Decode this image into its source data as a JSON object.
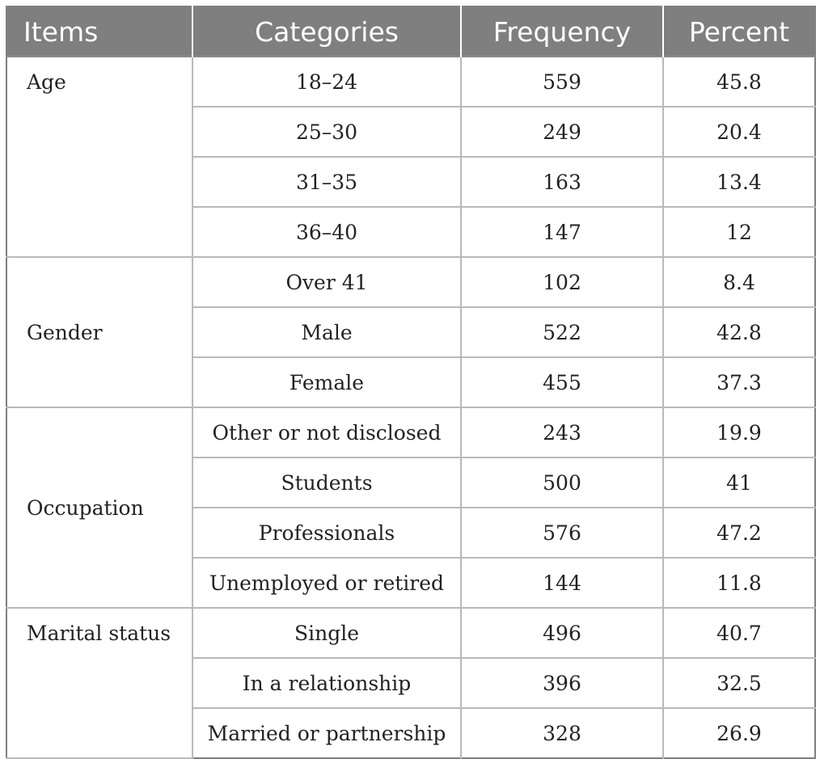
{
  "table": {
    "headers": [
      "Items",
      "Categories",
      "Frequency",
      "Percent"
    ],
    "groups": [
      {
        "item": "Age",
        "rows": [
          {
            "category": "18–24",
            "frequency": "559",
            "percent": "45.8"
          },
          {
            "category": "25–30",
            "frequency": "249",
            "percent": "20.4"
          },
          {
            "category": "31–35",
            "frequency": "163",
            "percent": "13.4"
          },
          {
            "category": "36–40",
            "frequency": "147",
            "percent": "12"
          }
        ]
      },
      {
        "item": "Gender",
        "rows": [
          {
            "category": "Over 41",
            "frequency": "102",
            "percent": "8.4"
          },
          {
            "category": "Male",
            "frequency": "522",
            "percent": "42.8"
          },
          {
            "category": "Female",
            "frequency": "455",
            "percent": "37.3"
          }
        ]
      },
      {
        "item": "Occupation",
        "rows": [
          {
            "category": "Other or not disclosed",
            "frequency": "243",
            "percent": "19.9"
          },
          {
            "category": "Students",
            "frequency": "500",
            "percent": "41"
          },
          {
            "category": "Professionals",
            "frequency": "576",
            "percent": "47.2"
          },
          {
            "category": "Unemployed or retired",
            "frequency": "144",
            "percent": "11.8"
          }
        ]
      },
      {
        "item": "Marital status",
        "rows": [
          {
            "category": "Single",
            "frequency": "496",
            "percent": "40.7"
          },
          {
            "category": "In a relationship",
            "frequency": "396",
            "percent": "32.5"
          },
          {
            "category": "Married or partnership",
            "frequency": "328",
            "percent": "26.9"
          }
        ]
      }
    ]
  },
  "colors": {
    "header_bg": "#7f7f7f",
    "header_text": "#ffffff",
    "grid_line": "#b9b9b9",
    "body_text": "#222222"
  }
}
